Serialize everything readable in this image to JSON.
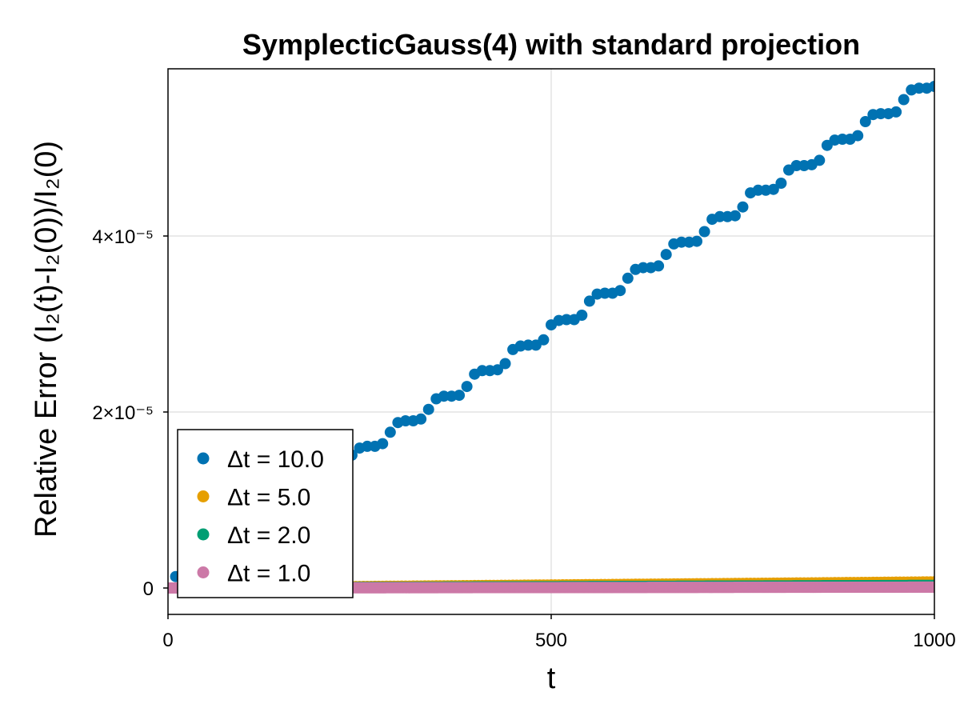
{
  "chart_data": {
    "type": "scatter",
    "title": "SymplecticGauss(4) with standard projection",
    "xlabel": "t",
    "ylabel": "Relative Error (I₂(t)-I₂(0))/I₂(0)",
    "xlim": [
      0,
      1000
    ],
    "ylim": [
      -3e-06,
      5.9e-05
    ],
    "x_ticks": [
      {
        "value": 0,
        "label": "0"
      },
      {
        "value": 500,
        "label": "500"
      },
      {
        "value": 1000,
        "label": "1000"
      }
    ],
    "y_ticks": [
      {
        "value": 0,
        "label": "0"
      },
      {
        "value": 2e-05,
        "label": "2×10⁻⁵"
      },
      {
        "value": 4e-05,
        "label": "4×10⁻⁵"
      }
    ],
    "grid": true,
    "legend_position": "bottom-left",
    "series": [
      {
        "name": "Δt = 10.0",
        "color": "#0072b2",
        "x": [
          10,
          20,
          30,
          40,
          50,
          60,
          70,
          80,
          90,
          100,
          110,
          120,
          130,
          140,
          150,
          160,
          170,
          180,
          190,
          200,
          210,
          220,
          230,
          240,
          250,
          260,
          270,
          280,
          290,
          300,
          310,
          320,
          330,
          340,
          350,
          360,
          370,
          380,
          390,
          400,
          410,
          420,
          430,
          440,
          450,
          460,
          470,
          480,
          490,
          500,
          510,
          520,
          530,
          540,
          550,
          560,
          570,
          580,
          590,
          600,
          610,
          620,
          630,
          640,
          650,
          660,
          670,
          680,
          690,
          700,
          710,
          720,
          730,
          740,
          750,
          760,
          770,
          780,
          790,
          800,
          810,
          820,
          830,
          840,
          850,
          860,
          870,
          880,
          890,
          900,
          910,
          920,
          930,
          940,
          950,
          960,
          970,
          980,
          990,
          1000
        ],
        "y": [
          1.3e-06,
          1.5e-06,
          1.7e-06,
          2.2e-06,
          2.9e-06,
          3.4e-06,
          3.9e-06,
          4.6e-06,
          5.1e-06,
          5.6e-06,
          6.3e-06,
          6.9e-06,
          7.4e-06,
          8.1e-06,
          8.6e-06,
          9.2e-06,
          9.9e-06,
          1.05e-05,
          1.12e-05,
          1.18e-05,
          1.24e-05,
          1.31e-05,
          1.36e-05,
          1.51e-05,
          1.59e-05,
          1.61e-05,
          1.61e-05,
          1.64e-05,
          1.77e-05,
          1.88e-05,
          1.9e-05,
          1.9e-05,
          1.92e-05,
          2.03e-05,
          2.15e-05,
          2.18e-05,
          2.18e-05,
          2.19e-05,
          2.29e-05,
          2.43e-05,
          2.47e-05,
          2.47e-05,
          2.48e-05,
          2.55e-05,
          2.71e-05,
          2.75e-05,
          2.76e-05,
          2.76e-05,
          2.82e-05,
          2.99e-05,
          3.04e-05,
          3.05e-05,
          3.05e-05,
          3.1e-05,
          3.26e-05,
          3.34e-05,
          3.35e-05,
          3.35e-05,
          3.38e-05,
          3.52e-05,
          3.62e-05,
          3.64e-05,
          3.64e-05,
          3.66e-05,
          3.79e-05,
          3.91e-05,
          3.93e-05,
          3.93e-05,
          3.94e-05,
          4.05e-05,
          4.19e-05,
          4.22e-05,
          4.22e-05,
          4.23e-05,
          4.33e-05,
          4.49e-05,
          4.52e-05,
          4.52e-05,
          4.53e-05,
          4.6e-05,
          4.75e-05,
          4.8e-05,
          4.8e-05,
          4.81e-05,
          4.86e-05,
          5.03e-05,
          5.09e-05,
          5.1e-05,
          5.1e-05,
          5.14e-05,
          5.3e-05,
          5.38e-05,
          5.39e-05,
          5.39e-05,
          5.41e-05,
          5.55e-05,
          5.66e-05,
          5.68e-05,
          5.68e-05,
          5.7e-05
        ]
      },
      {
        "name": "Δt = 5.0",
        "color": "#e69f00",
        "x_start": 0,
        "x_end": 1000,
        "x_step": 5,
        "y_start": 0,
        "y_end": 7e-07
      },
      {
        "name": "Δt = 2.0",
        "color": "#009e73",
        "x_start": 0,
        "x_end": 1000,
        "x_step": 2,
        "y_start": 0,
        "y_end": 3e-07
      },
      {
        "name": "Δt = 1.0",
        "color": "#cc79a7",
        "x_start": 0,
        "x_end": 1000,
        "x_step": 1,
        "y_start": 0,
        "y_end": 1e-07
      }
    ]
  }
}
